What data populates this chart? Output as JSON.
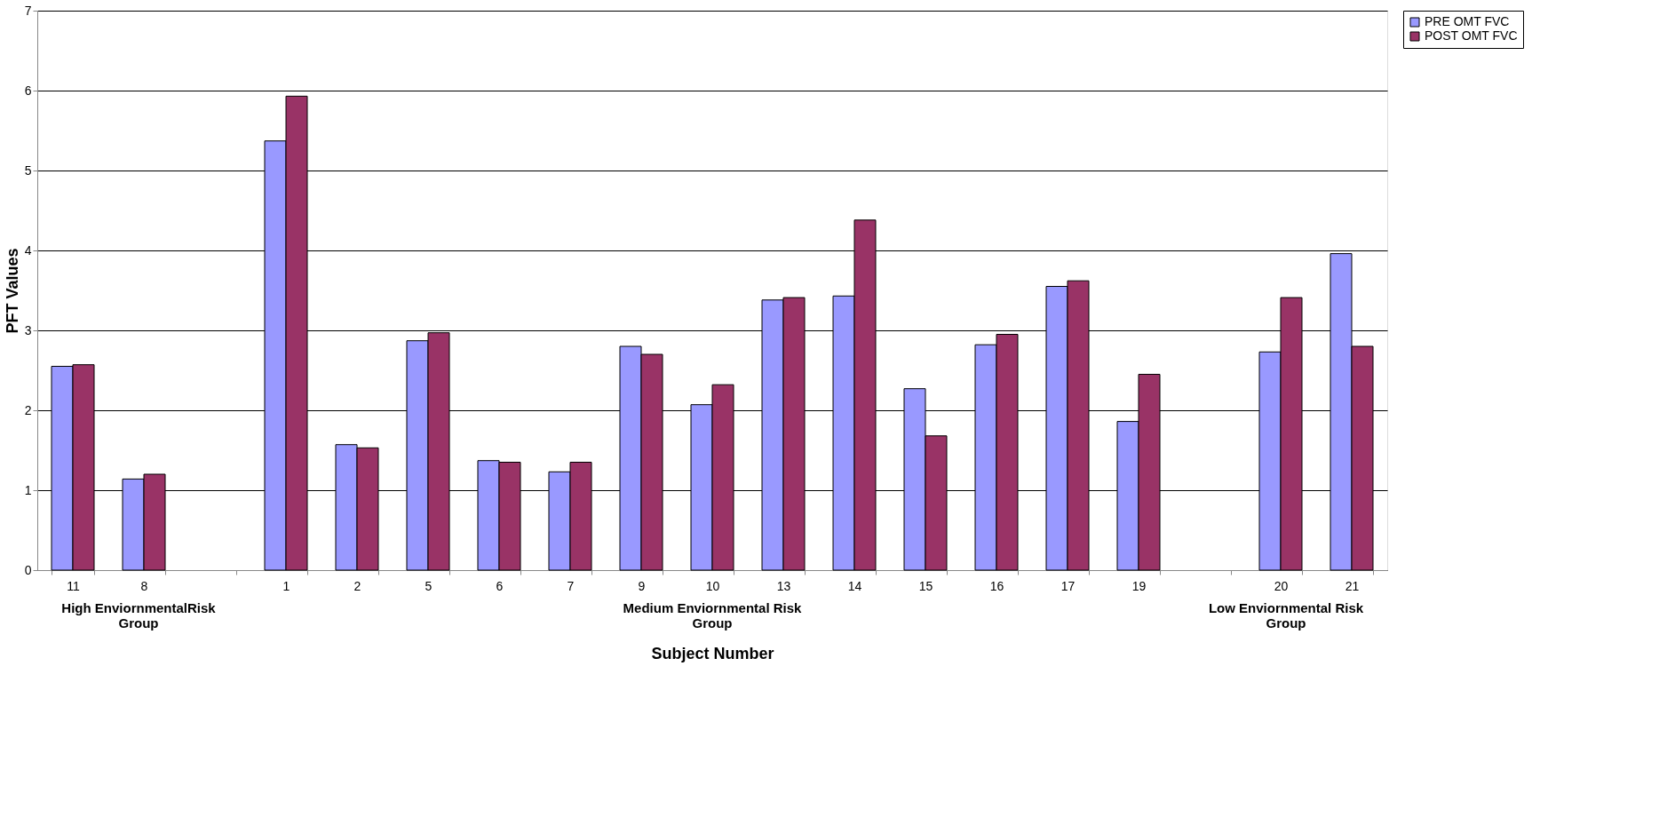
{
  "chart_data": {
    "type": "bar",
    "xlabel": "Subject Number",
    "ylabel": "PFT Values",
    "categories": [
      "11",
      "8",
      null,
      "1",
      "2",
      "5",
      "6",
      "7",
      "9",
      "10",
      "13",
      "14",
      "15",
      "16",
      "17",
      "19",
      null,
      "20",
      "21"
    ],
    "series": [
      {
        "name": "PRE OMT FVC",
        "color": "#9999ff",
        "values": [
          2.55,
          1.14,
          null,
          5.37,
          1.57,
          2.87,
          1.37,
          1.23,
          2.8,
          2.07,
          3.38,
          3.43,
          2.27,
          2.82,
          3.55,
          1.86,
          null,
          2.73,
          3.96
        ]
      },
      {
        "name": "POST OMT FVC",
        "color": "#993366",
        "values": [
          2.57,
          1.2,
          null,
          5.93,
          1.53,
          2.97,
          1.35,
          1.35,
          2.7,
          2.32,
          3.41,
          4.38,
          1.68,
          2.95,
          3.62,
          2.45,
          null,
          3.41,
          2.8
        ]
      }
    ],
    "annotations": [
      "High EnviornmentalRisk Group",
      "Medium Enviornmental Risk Group",
      "Low Enviornmental Risk Group"
    ],
    "ylim": [
      0,
      7
    ],
    "yticks": [
      0,
      1,
      2,
      3,
      4,
      5,
      6,
      7
    ],
    "grid": "y",
    "legend": "right"
  }
}
